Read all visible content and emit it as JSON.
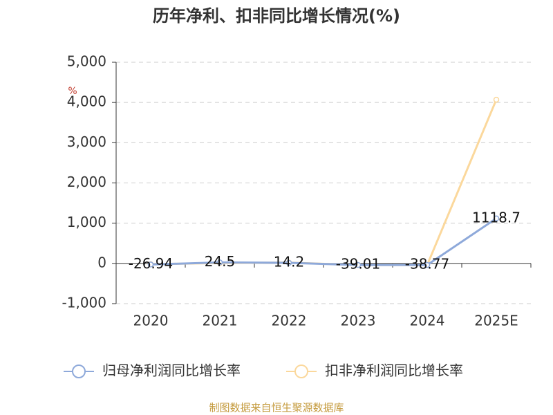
{
  "chart_data": {
    "type": "line",
    "title": "历年净利、扣非同比增长情况(%)",
    "y_unit": "%",
    "categories": [
      "2020",
      "2021",
      "2022",
      "2023",
      "2024",
      "2025E"
    ],
    "series": [
      {
        "name": "归母净利润同比增长率",
        "color": "#8ea9da",
        "values": [
          -26.94,
          24.5,
          14.2,
          -39.01,
          -38.77,
          1118.7
        ],
        "show_labels": true
      },
      {
        "name": "扣非净利润同比增长率",
        "color": "#fbd89c",
        "values": [
          -20,
          10,
          20,
          -40,
          -40,
          4070
        ],
        "show_labels": false
      }
    ],
    "ylim": [
      -1000,
      5000
    ],
    "yticks": [
      {
        "value": -1000,
        "label": "-1,000"
      },
      0,
      {
        "value": 1000,
        "label": "1,000"
      },
      {
        "value": 2000,
        "label": "2,000"
      },
      {
        "value": 3000,
        "label": "3,000"
      },
      {
        "value": 4000,
        "label": "4,000"
      },
      {
        "value": 5000,
        "label": "5,000"
      }
    ],
    "grid": true,
    "source": "制图数据来自恒生聚源数据库"
  }
}
